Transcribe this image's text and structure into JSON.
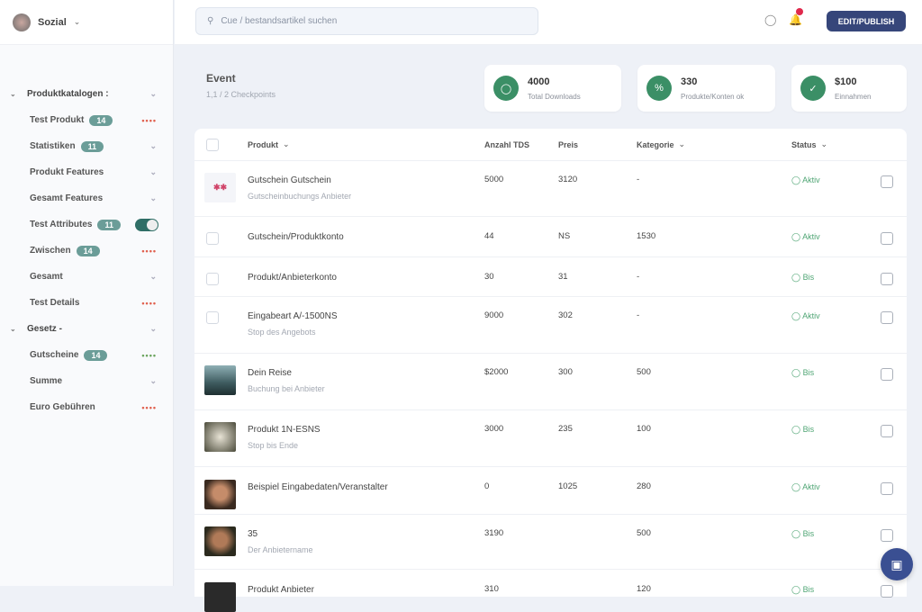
{
  "brand": {
    "name": "Sozial"
  },
  "search": {
    "placeholder": "Cue / bestandsartikel suchen"
  },
  "header": {
    "cta": "EDIT/PUBLISH"
  },
  "page": {
    "title": "Event",
    "subtitle": "1,1 / 2 Checkpoints"
  },
  "cards": [
    {
      "value": "4000",
      "label": "Total Downloads",
      "icon": "badge-icon"
    },
    {
      "value": "330",
      "label": "Produkte/Konten ok",
      "icon": "ticket-icon"
    },
    {
      "value": "$100",
      "label": "Einnahmen",
      "icon": "tag-icon"
    }
  ],
  "sidebar": {
    "items": [
      {
        "label": "Produktkatalogen :",
        "type": "group",
        "right": "chevron"
      },
      {
        "label": "Test Produkt",
        "pill": "14",
        "right": "dots-red"
      },
      {
        "label": "Statistiken",
        "pill": "11",
        "right": "chevron"
      },
      {
        "label": "Produkt Features",
        "right": "chevron"
      },
      {
        "label": "Gesamt Features",
        "right": "chevron"
      },
      {
        "label": "Test Attributes",
        "pill": "11",
        "right": "toggle"
      },
      {
        "label": "Zwischen",
        "pill": "14",
        "right": "dots-red"
      },
      {
        "label": "Gesamt",
        "right": "chevron"
      },
      {
        "label": "Test Details",
        "right": "dots-red"
      },
      {
        "label": "Gesetz -",
        "type": "group",
        "right": "chevron"
      },
      {
        "label": "Gutscheine",
        "pill": "14",
        "right": "dots-green"
      },
      {
        "label": "Summe",
        "right": "chevron"
      },
      {
        "label": "Euro Gebühren",
        "right": "dots-red"
      }
    ]
  },
  "table": {
    "columns": [
      "Produkt",
      "Anzahl TDS",
      "Preis",
      "Kategorie",
      "Status"
    ],
    "rows": [
      {
        "name": "Gutschein Gutschein",
        "sub": "Gutscheinbuchungs Anbieter",
        "c1": "5000",
        "c2": "3120",
        "c3": "-",
        "status": "Aktiv",
        "thumb": "logo"
      },
      {
        "name": "Gutschein/Produktkonto",
        "sub": "",
        "c1": "44",
        "c2": "NS",
        "c3": "1530",
        "status": "Aktiv",
        "thumb": "none"
      },
      {
        "name": "Produkt/Anbieterkonto",
        "sub": "",
        "c1": "30",
        "c2": "31",
        "c3": "-",
        "status": "Bis",
        "thumb": "none"
      },
      {
        "name": "Eingabeart A/-1500NS",
        "sub": "Stop des Angebots",
        "c1": "9000",
        "c2": "302",
        "c3": "-",
        "status": "Aktiv",
        "thumb": "none"
      },
      {
        "name": "Dein Reise",
        "sub": "Buchung bei Anbieter",
        "c1": "$2000",
        "c2": "300",
        "c3": "500",
        "status": "Bis",
        "thumb": "landscape"
      },
      {
        "name": "Produkt 1N-ESNS",
        "sub": "Stop bis Ende",
        "c1": "3000",
        "c2": "235",
        "c3": "100",
        "status": "Bis",
        "thumb": "object"
      },
      {
        "name": "Beispiel Eingabedaten/Veranstalter",
        "sub": "",
        "c1": "0",
        "c2": "1025",
        "c3": "280",
        "status": "Aktiv",
        "thumb": "portrait"
      },
      {
        "name": "35",
        "sub": "Der Anbietername",
        "c1": "3190",
        "c2": "",
        "c3": "500",
        "status": "Bis",
        "thumb": "portrait2"
      },
      {
        "name": "Produkt Anbieter",
        "sub": "",
        "c1": "310",
        "c2": "",
        "c3": "120",
        "status": "Bis",
        "thumb": "dark"
      }
    ]
  },
  "colors": {
    "accent": "#36467a",
    "status": "#4fa574",
    "pill": "#6b9d98"
  }
}
